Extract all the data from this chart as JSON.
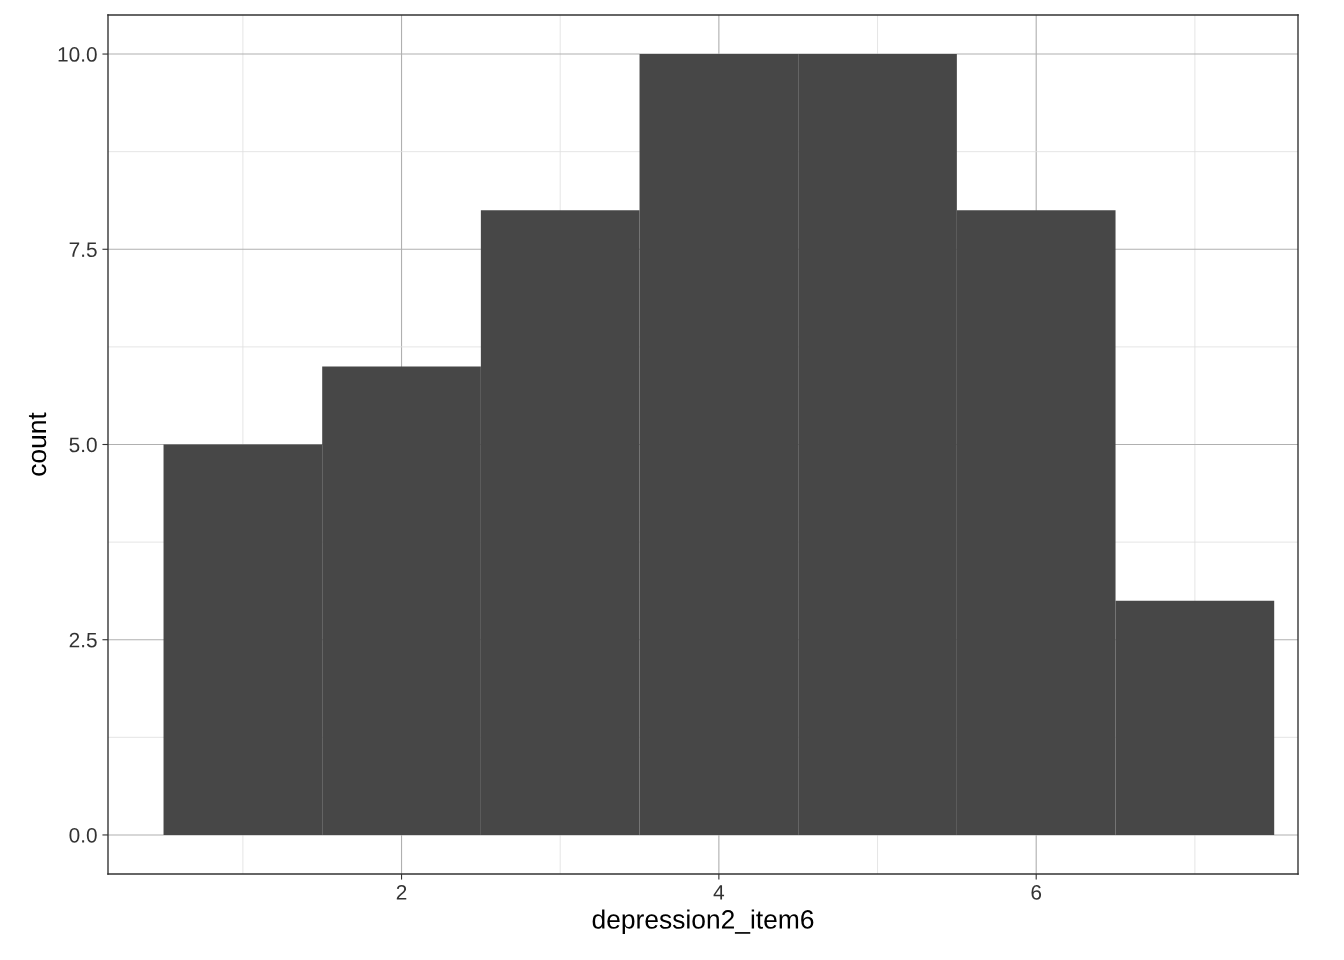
{
  "chart_data": {
    "type": "histogram",
    "xlabel": "depression2_item6",
    "ylabel": "count",
    "bins": [
      0.5,
      1.5,
      2.5,
      3.5,
      4.5,
      5.5,
      6.5,
      7.5
    ],
    "values": [
      5,
      6,
      8,
      10,
      10,
      8,
      3
    ],
    "color": "#474747",
    "xlim": [
      0.15,
      7.65
    ],
    "ylim": [
      -0.5,
      10.5
    ],
    "xticks": [
      2,
      4,
      6
    ],
    "yticks": [
      {
        "value": 0,
        "label": "0.0"
      },
      {
        "value": 2.5,
        "label": "2.5"
      },
      {
        "value": 5,
        "label": "5.0"
      },
      {
        "value": 7.5,
        "label": "7.5"
      },
      {
        "value": 10,
        "label": "10.0"
      }
    ],
    "grid": true,
    "legend": false
  }
}
